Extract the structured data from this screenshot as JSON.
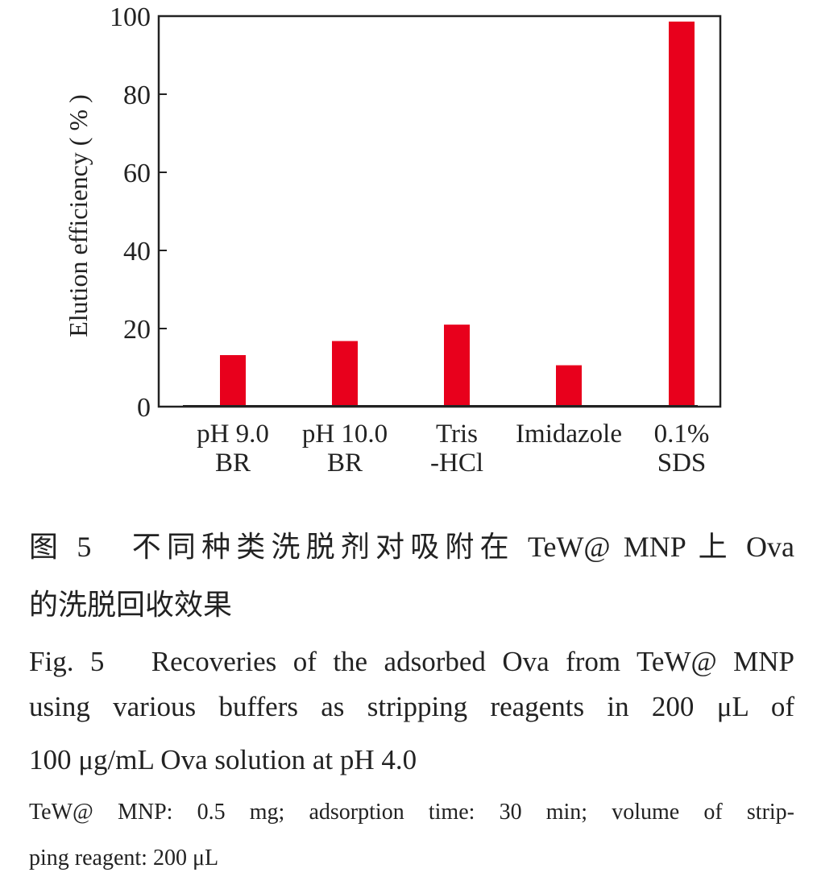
{
  "chart_data": {
    "type": "bar",
    "categories": [
      [
        "pH 9.0",
        "BR"
      ],
      [
        "pH 10.0",
        "BR"
      ],
      [
        "Tris",
        "-HCl"
      ],
      [
        "Imidazole"
      ],
      [
        "0.1%",
        "SDS"
      ]
    ],
    "values": [
      13.2,
      16.8,
      21.0,
      10.6,
      98.6
    ],
    "ylabel": "Elution efficiency ( % )",
    "ylim": [
      0,
      100
    ],
    "yticks": [
      "0",
      "20",
      "40",
      "60",
      "80",
      "100"
    ],
    "bar_color": "#e8001c",
    "grid": false
  },
  "caption": {
    "cn_line1": "图 5　不同种类洗脱剂对吸附在 TeW@ MNP 上 Ova",
    "cn_line2": "的洗脱回收效果",
    "en_line1": "Fig. 5　Recoveries of the adsorbed Ova from TeW@ MNP",
    "en_line2": "using various buffers as stripping reagents in 200 μL of",
    "en_line3": "100 μg/mL Ova solution at pH 4.0",
    "note_line1": "TeW@ MNP: 0.5 mg; adsorption time: 30 min; volume of strip-",
    "note_line2": "ping reagent: 200 μL"
  }
}
